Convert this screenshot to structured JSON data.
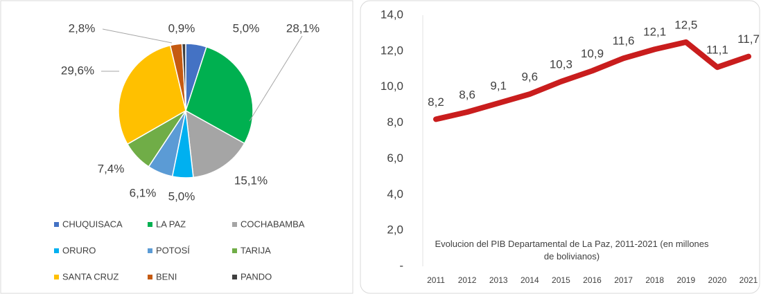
{
  "chart_data": [
    {
      "type": "pie",
      "categories": [
        "CHUQUISACA",
        "LA PAZ",
        "COCHABAMBA",
        "ORURO",
        "POTOSÍ",
        "TARIJA",
        "SANTA CRUZ",
        "BENI",
        "PANDO"
      ],
      "values": [
        5.0,
        28.1,
        15.1,
        5.0,
        6.1,
        7.4,
        29.6,
        2.8,
        0.9
      ],
      "value_labels": [
        "5,0%",
        "28,1%",
        "15,1%",
        "5,0%",
        "6,1%",
        "7,4%",
        "29,6%",
        "2,8%",
        "0,9%"
      ],
      "colors": [
        "#4472c4",
        "#00b050",
        "#a5a5a5",
        "#00b0f0",
        "#5b9bd5",
        "#70ad47",
        "#ffc000",
        "#c55a11",
        "#404040"
      ]
    },
    {
      "type": "line",
      "title": "Evolucion del PIB Departamental de La Paz, 2011-2021 (en millones de bolivianos)",
      "categories": [
        "2011",
        "2012",
        "2013",
        "2014",
        "2015",
        "2016",
        "2017",
        "2018",
        "2019",
        "2020",
        "2021"
      ],
      "values": [
        8.2,
        8.6,
        9.1,
        9.6,
        10.3,
        10.9,
        11.6,
        12.1,
        12.5,
        11.1,
        11.7
      ],
      "value_labels": [
        "8,2",
        "8,6",
        "9,1",
        "9,6",
        "10,3",
        "10,9",
        "11,6",
        "12,1",
        "12,5",
        "11,1",
        "11,7"
      ],
      "color": "#c91d1d",
      "ylim": [
        0,
        14
      ],
      "yticks": [
        {
          "value": 0,
          "label": "-"
        },
        {
          "value": 2,
          "label": "2,0"
        },
        {
          "value": 4,
          "label": "4,0"
        },
        {
          "value": 6,
          "label": "6,0"
        },
        {
          "value": 8,
          "label": "8,0"
        },
        {
          "value": 10,
          "label": "10,0"
        },
        {
          "value": 12,
          "label": "12,0"
        },
        {
          "value": 14,
          "label": "14,0"
        }
      ],
      "grid": false
    }
  ]
}
